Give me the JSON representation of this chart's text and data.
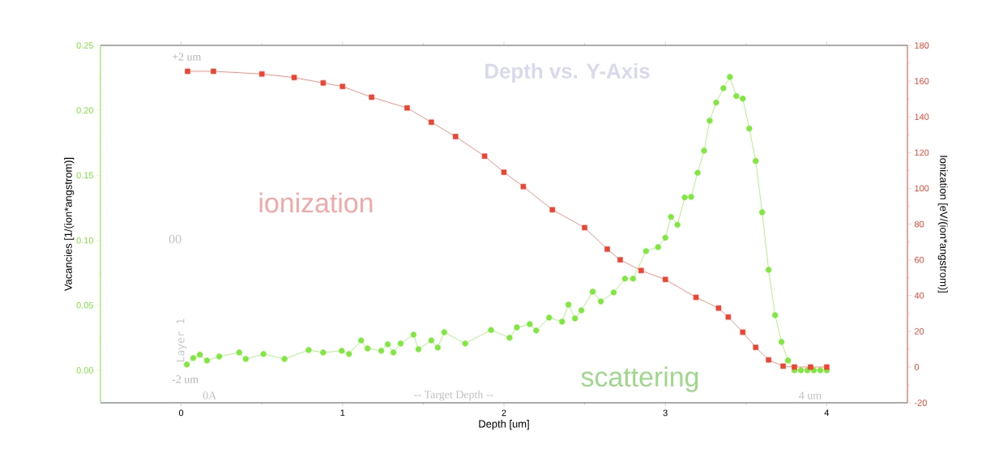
{
  "chart_data": {
    "type": "line",
    "xlabel": "Depth [um]",
    "ylabel": "Vacancies [1/(ion*angstrom)]",
    "y2label": "Ionization [eV/(ion*angstrom)]",
    "annotations": [
      "Depth vs. Y-Axis",
      "ionization",
      "scattering",
      "+2 um",
      "00",
      "Layer 1",
      "-2 um",
      "0A",
      "-- Target Depth --",
      "4 um"
    ],
    "xlim": [
      -0.5,
      4.5
    ],
    "xticks": [
      0,
      1,
      2,
      3,
      4
    ],
    "ylim": [
      -0.025,
      0.25
    ],
    "yticks": [
      {
        "value": 0,
        "label": "0.00"
      },
      {
        "value": 0.05,
        "label": "0.05"
      },
      {
        "value": 0.1,
        "label": "0.10"
      },
      {
        "value": 0.15,
        "label": "0.15"
      },
      {
        "value": 0.2,
        "label": "0.20"
      },
      {
        "value": 0.25,
        "label": "0.25"
      }
    ],
    "y2lim": [
      -20,
      180
    ],
    "y2ticks": [
      -20,
      0,
      20,
      40,
      60,
      80,
      100,
      120,
      140,
      160,
      180
    ],
    "grid": false,
    "series": [
      {
        "color": "#7ee83c",
        "marker": "circle",
        "x": [
          0.035,
          0.075,
          0.116,
          0.16,
          0.236,
          0.36,
          0.4,
          0.51,
          0.64,
          0.79,
          0.88,
          0.995,
          1.04,
          1.115,
          1.155,
          1.24,
          1.28,
          1.315,
          1.36,
          1.44,
          1.47,
          1.55,
          1.59,
          1.63,
          1.76,
          1.92,
          2.035,
          2.08,
          2.16,
          2.2,
          2.28,
          2.36,
          2.4,
          2.44,
          2.48,
          2.55,
          2.6,
          2.68,
          2.75,
          2.8,
          2.88,
          2.955,
          3.0,
          3.035,
          3.075,
          3.12,
          3.16,
          3.2,
          3.24,
          3.275,
          3.315,
          3.36,
          3.4,
          3.44,
          3.48,
          3.52,
          3.56,
          3.6,
          3.64,
          3.68,
          3.72,
          3.76,
          3.8,
          3.84,
          3.88,
          3.92,
          3.96,
          4.0
        ],
        "values": [
          0.0044,
          0.0094,
          0.012,
          0.0075,
          0.0106,
          0.0137,
          0.0087,
          0.0125,
          0.0087,
          0.0156,
          0.0137,
          0.015,
          0.0125,
          0.023,
          0.0168,
          0.015,
          0.02,
          0.0137,
          0.0206,
          0.0274,
          0.0162,
          0.023,
          0.0175,
          0.0293,
          0.0206,
          0.031,
          0.025,
          0.033,
          0.0355,
          0.0306,
          0.0405,
          0.0374,
          0.0505,
          0.0399,
          0.0461,
          0.0605,
          0.053,
          0.0599,
          0.0705,
          0.0705,
          0.0917,
          0.0948,
          0.102,
          0.118,
          0.112,
          0.133,
          0.1334,
          0.152,
          0.169,
          0.192,
          0.206,
          0.217,
          0.2257,
          0.211,
          0.209,
          0.186,
          0.161,
          0.1216,
          0.0773,
          0.0424,
          0.0218,
          0.0075,
          0,
          0,
          0,
          0,
          0,
          0
        ]
      },
      {
        "color": "#ee4433",
        "marker": "square",
        "axis": "y2",
        "x": [
          0.04,
          0.2,
          0.5,
          0.7,
          0.88,
          1.0,
          1.18,
          1.4,
          1.55,
          1.7,
          1.88,
          2.0,
          2.12,
          2.3,
          2.5,
          2.64,
          2.72,
          2.85,
          3.0,
          3.19,
          3.33,
          3.39,
          3.48,
          3.56,
          3.64,
          3.73,
          3.8,
          3.9,
          4.0
        ],
        "values": [
          165.5,
          165.5,
          164,
          162,
          159,
          157,
          151,
          145,
          137,
          129,
          118,
          109,
          101,
          88,
          78,
          66,
          60,
          54,
          49,
          39,
          33,
          28,
          19.5,
          11,
          4,
          0.5,
          0,
          0,
          0
        ]
      }
    ]
  }
}
